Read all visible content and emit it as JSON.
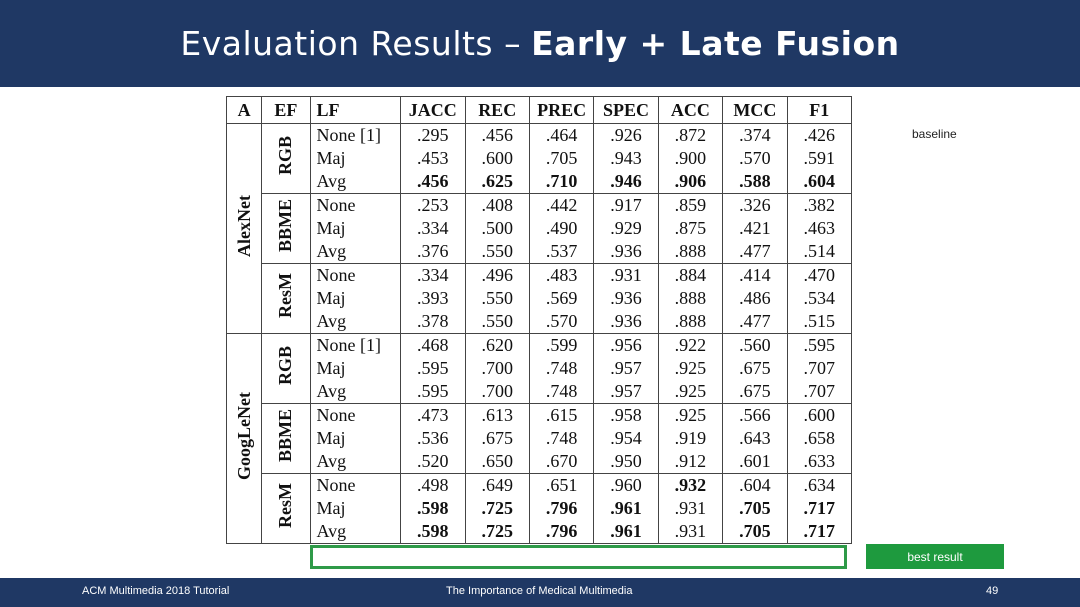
{
  "title": {
    "plain": "Evaluation Results –",
    "bold": "Early + Late Fusion"
  },
  "table": {
    "headers": [
      "A",
      "EF",
      "LF",
      "JACC",
      "REC",
      "PREC",
      "SPEC",
      "ACC",
      "MCC",
      "F1"
    ],
    "groups": [
      {
        "name": "AlexNet",
        "ef": [
          {
            "name": "RGB",
            "rows": [
              {
                "lf": "None [1]",
                "values": [
                  ".295",
                  ".456",
                  ".464",
                  ".926",
                  ".872",
                  ".374",
                  ".426"
                ],
                "bold": [
                  false,
                  false,
                  false,
                  false,
                  false,
                  false,
                  false
                ]
              },
              {
                "lf": "Maj",
                "values": [
                  ".453",
                  ".600",
                  ".705",
                  ".943",
                  ".900",
                  ".570",
                  ".591"
                ],
                "bold": [
                  false,
                  false,
                  false,
                  false,
                  false,
                  false,
                  false
                ]
              },
              {
                "lf": "Avg",
                "values": [
                  ".456",
                  ".625",
                  ".710",
                  ".946",
                  ".906",
                  ".588",
                  ".604"
                ],
                "bold": [
                  true,
                  true,
                  true,
                  true,
                  true,
                  true,
                  true
                ]
              }
            ]
          },
          {
            "name": "BBME",
            "rows": [
              {
                "lf": "None",
                "values": [
                  ".253",
                  ".408",
                  ".442",
                  ".917",
                  ".859",
                  ".326",
                  ".382"
                ],
                "bold": [
                  false,
                  false,
                  false,
                  false,
                  false,
                  false,
                  false
                ]
              },
              {
                "lf": "Maj",
                "values": [
                  ".334",
                  ".500",
                  ".490",
                  ".929",
                  ".875",
                  ".421",
                  ".463"
                ],
                "bold": [
                  false,
                  false,
                  false,
                  false,
                  false,
                  false,
                  false
                ]
              },
              {
                "lf": "Avg",
                "values": [
                  ".376",
                  ".550",
                  ".537",
                  ".936",
                  ".888",
                  ".477",
                  ".514"
                ],
                "bold": [
                  false,
                  false,
                  false,
                  false,
                  false,
                  false,
                  false
                ]
              }
            ]
          },
          {
            "name": "ResM",
            "rows": [
              {
                "lf": "None",
                "values": [
                  ".334",
                  ".496",
                  ".483",
                  ".931",
                  ".884",
                  ".414",
                  ".470"
                ],
                "bold": [
                  false,
                  false,
                  false,
                  false,
                  false,
                  false,
                  false
                ]
              },
              {
                "lf": "Maj",
                "values": [
                  ".393",
                  ".550",
                  ".569",
                  ".936",
                  ".888",
                  ".486",
                  ".534"
                ],
                "bold": [
                  false,
                  false,
                  false,
                  false,
                  false,
                  false,
                  false
                ]
              },
              {
                "lf": "Avg",
                "values": [
                  ".378",
                  ".550",
                  ".570",
                  ".936",
                  ".888",
                  ".477",
                  ".515"
                ],
                "bold": [
                  false,
                  false,
                  false,
                  false,
                  false,
                  false,
                  false
                ]
              }
            ]
          }
        ]
      },
      {
        "name": "GoogLeNet",
        "ef": [
          {
            "name": "RGB",
            "rows": [
              {
                "lf": "None [1]",
                "values": [
                  ".468",
                  ".620",
                  ".599",
                  ".956",
                  ".922",
                  ".560",
                  ".595"
                ],
                "bold": [
                  false,
                  false,
                  false,
                  false,
                  false,
                  false,
                  false
                ]
              },
              {
                "lf": "Maj",
                "values": [
                  ".595",
                  ".700",
                  ".748",
                  ".957",
                  ".925",
                  ".675",
                  ".707"
                ],
                "bold": [
                  false,
                  false,
                  false,
                  false,
                  false,
                  false,
                  false
                ]
              },
              {
                "lf": "Avg",
                "values": [
                  ".595",
                  ".700",
                  ".748",
                  ".957",
                  ".925",
                  ".675",
                  ".707"
                ],
                "bold": [
                  false,
                  false,
                  false,
                  false,
                  false,
                  false,
                  false
                ]
              }
            ]
          },
          {
            "name": "BBME",
            "rows": [
              {
                "lf": "None",
                "values": [
                  ".473",
                  ".613",
                  ".615",
                  ".958",
                  ".925",
                  ".566",
                  ".600"
                ],
                "bold": [
                  false,
                  false,
                  false,
                  false,
                  false,
                  false,
                  false
                ]
              },
              {
                "lf": "Maj",
                "values": [
                  ".536",
                  ".675",
                  ".748",
                  ".954",
                  ".919",
                  ".643",
                  ".658"
                ],
                "bold": [
                  false,
                  false,
                  false,
                  false,
                  false,
                  false,
                  false
                ]
              },
              {
                "lf": "Avg",
                "values": [
                  ".520",
                  ".650",
                  ".670",
                  ".950",
                  ".912",
                  ".601",
                  ".633"
                ],
                "bold": [
                  false,
                  false,
                  false,
                  false,
                  false,
                  false,
                  false
                ]
              }
            ]
          },
          {
            "name": "ResM",
            "rows": [
              {
                "lf": "None",
                "values": [
                  ".498",
                  ".649",
                  ".651",
                  ".960",
                  ".932",
                  ".604",
                  ".634"
                ],
                "bold": [
                  false,
                  false,
                  false,
                  false,
                  true,
                  false,
                  false
                ]
              },
              {
                "lf": "Maj",
                "values": [
                  ".598",
                  ".725",
                  ".796",
                  ".961",
                  ".931",
                  ".705",
                  ".717"
                ],
                "bold": [
                  true,
                  true,
                  true,
                  true,
                  false,
                  true,
                  true
                ]
              },
              {
                "lf": "Avg",
                "values": [
                  ".598",
                  ".725",
                  ".796",
                  ".961",
                  ".931",
                  ".705",
                  ".717"
                ],
                "bold": [
                  true,
                  true,
                  true,
                  true,
                  false,
                  true,
                  true
                ]
              }
            ]
          }
        ]
      }
    ]
  },
  "annotations": {
    "baseline": "baseline",
    "best": "best result"
  },
  "colors": {
    "header_bg": "#1f3864",
    "best_green": "#2e9a48"
  },
  "footer": {
    "left": "ACM Multimedia 2018 Tutorial",
    "center": "The Importance of Medical Multimedia",
    "page": "49"
  }
}
